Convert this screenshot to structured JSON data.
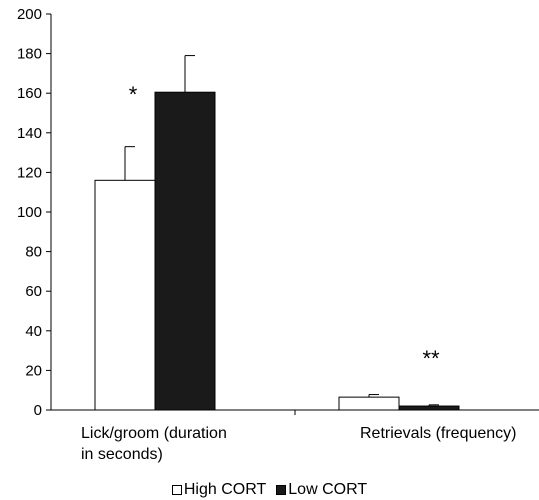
{
  "chart_data": {
    "type": "bar",
    "categories": [
      "Lick/groom (duration\nin seconds)",
      "Retrievals (frequency)"
    ],
    "series": [
      {
        "name": "High CORT",
        "color": "#ffffff",
        "values": [
          116,
          6.5
        ],
        "errors": [
          17,
          1.3
        ]
      },
      {
        "name": "Low CORT",
        "color": "#1a1a1a",
        "values": [
          160.5,
          2
        ],
        "errors": [
          18.5,
          0.6
        ]
      }
    ],
    "annotations": [
      {
        "text": "*",
        "category": 0
      },
      {
        "text": "**",
        "category": 1
      }
    ],
    "ylim": [
      0,
      200
    ],
    "yticks": [
      0,
      20,
      40,
      60,
      80,
      100,
      120,
      140,
      160,
      180,
      200
    ],
    "grid": false,
    "legend_position": "bottom"
  }
}
